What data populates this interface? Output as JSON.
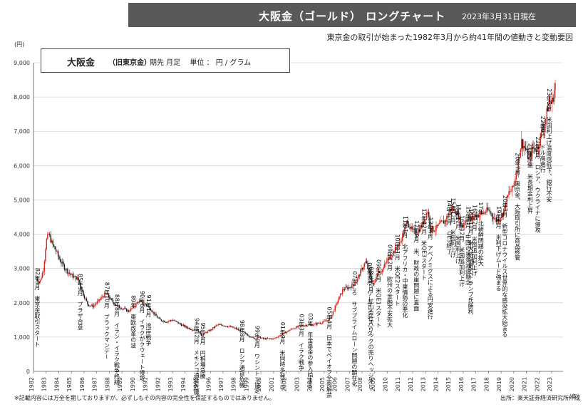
{
  "header": {
    "title": "大阪金（ゴールド） ロングチャート",
    "date": "2023年3月31日現在",
    "subtitle": "東京金の取引が始まった1982年3月から約41年間の値動きと変動要因"
  },
  "infobox": {
    "name": "大阪金",
    "name_sub": "（旧東京金）",
    "meta": "期先 月足　 単位 ： 円 /  グラム"
  },
  "footer": {
    "note": "※記載内容には万全を期しておりますが、必ずしもその内容の完全性を保証するものではありません。",
    "source": "出所：楽天証券経済研究所作成"
  },
  "chart_data": {
    "type": "candlestick",
    "title": "大阪金（ゴールド） ロングチャート",
    "y_unit_label": "(円)",
    "x_unit_label": "（年）",
    "ylim": [
      0,
      9000
    ],
    "xlim": [
      1982,
      2023.9
    ],
    "y_ticks": [
      0,
      1000,
      2000,
      3000,
      4000,
      5000,
      6000,
      7000,
      8000,
      9000
    ],
    "y_tick_labels": [
      "0",
      "1,000",
      "2,000",
      "3,000",
      "4,000",
      "5,000",
      "6,000",
      "7,000",
      "8,000",
      "9,000"
    ],
    "x_ticks": [
      1982,
      1983,
      1984,
      1985,
      1986,
      1987,
      1988,
      1989,
      1990,
      1991,
      1992,
      1993,
      1994,
      1995,
      1996,
      1997,
      1998,
      1999,
      2000,
      2001,
      2002,
      2003,
      2004,
      2005,
      2006,
      2007,
      2008,
      2009,
      2010,
      2011,
      2012,
      2013,
      2014,
      2015,
      2016,
      2017,
      2018,
      2019,
      2020,
      2021,
      2022,
      2023
    ],
    "grid": "horizontal",
    "series_colors": {
      "up": "#e0251b",
      "down": "#1a1a1a"
    },
    "price_path": [
      [
        1982.2,
        2700
      ],
      [
        1982.5,
        2600
      ],
      [
        1982.8,
        3000
      ],
      [
        1983.0,
        3800
      ],
      [
        1983.2,
        4000
      ],
      [
        1983.5,
        3700
      ],
      [
        1983.8,
        3500
      ],
      [
        1984.0,
        3300
      ],
      [
        1984.5,
        3000
      ],
      [
        1985.0,
        2800
      ],
      [
        1985.5,
        2700
      ],
      [
        1986.0,
        2200
      ],
      [
        1986.3,
        1950
      ],
      [
        1986.7,
        1900
      ],
      [
        1987.0,
        2000
      ],
      [
        1987.5,
        2200
      ],
      [
        1987.8,
        2250
      ],
      [
        1988.2,
        2050
      ],
      [
        1988.6,
        1900
      ],
      [
        1989.0,
        1850
      ],
      [
        1989.5,
        1750
      ],
      [
        1990.0,
        1900
      ],
      [
        1990.3,
        2050
      ],
      [
        1990.6,
        2000
      ],
      [
        1990.9,
        1950
      ],
      [
        1991.2,
        1850
      ],
      [
        1991.6,
        1650
      ],
      [
        1992.0,
        1500
      ],
      [
        1992.5,
        1450
      ],
      [
        1993.0,
        1500
      ],
      [
        1993.5,
        1400
      ],
      [
        1994.0,
        1300
      ],
      [
        1994.5,
        1230
      ],
      [
        1995.0,
        1200
      ],
      [
        1995.3,
        1050
      ],
      [
        1995.7,
        1150
      ],
      [
        1996.0,
        1200
      ],
      [
        1996.5,
        1350
      ],
      [
        1997.0,
        1350
      ],
      [
        1997.5,
        1300
      ],
      [
        1998.0,
        1250
      ],
      [
        1998.5,
        1150
      ],
      [
        1999.0,
        1050
      ],
      [
        1999.5,
        950
      ],
      [
        1999.8,
        1000
      ],
      [
        2000.2,
        950
      ],
      [
        2000.6,
        950
      ],
      [
        2001.0,
        950
      ],
      [
        2001.5,
        1050
      ],
      [
        2002.0,
        1150
      ],
      [
        2002.5,
        1250
      ],
      [
        2003.0,
        1300
      ],
      [
        2003.5,
        1350
      ],
      [
        2004.0,
        1350
      ],
      [
        2004.5,
        1400
      ],
      [
        2005.0,
        1450
      ],
      [
        2005.5,
        1550
      ],
      [
        2006.0,
        2000
      ],
      [
        2006.5,
        2400
      ],
      [
        2007.0,
        2450
      ],
      [
        2007.5,
        2600
      ],
      [
        2008.0,
        3000
      ],
      [
        2008.3,
        3200
      ],
      [
        2008.7,
        2700
      ],
      [
        2008.9,
        2500
      ],
      [
        2009.2,
        2900
      ],
      [
        2009.6,
        2950
      ],
      [
        2010.0,
        3250
      ],
      [
        2010.5,
        3500
      ],
      [
        2011.0,
        3750
      ],
      [
        2011.6,
        4400
      ],
      [
        2011.9,
        4100
      ],
      [
        2012.3,
        4050
      ],
      [
        2012.8,
        4300
      ],
      [
        2013.2,
        4700
      ],
      [
        2013.4,
        4150
      ],
      [
        2013.8,
        4150
      ],
      [
        2014.2,
        4300
      ],
      [
        2014.6,
        4400
      ],
      [
        2015.0,
        4750
      ],
      [
        2015.5,
        4650
      ],
      [
        2015.9,
        4200
      ],
      [
        2016.3,
        4500
      ],
      [
        2016.6,
        4400
      ],
      [
        2017.0,
        4550
      ],
      [
        2017.5,
        4600
      ],
      [
        2018.0,
        4700
      ],
      [
        2018.6,
        4400
      ],
      [
        2018.9,
        4500
      ],
      [
        2019.2,
        4650
      ],
      [
        2019.6,
        5200
      ],
      [
        2019.9,
        5300
      ],
      [
        2020.2,
        5800
      ],
      [
        2020.6,
        6700
      ],
      [
        2020.9,
        6500
      ],
      [
        2021.2,
        6200
      ],
      [
        2021.5,
        6500
      ],
      [
        2021.9,
        6500
      ],
      [
        2022.2,
        7000
      ],
      [
        2022.5,
        7300
      ],
      [
        2022.8,
        7900
      ],
      [
        2023.0,
        7800
      ],
      [
        2023.3,
        8400
      ]
    ],
    "annotations": [
      {
        "x": 1982.3,
        "text": "82年3月　東京金取引スタート"
      },
      {
        "x": 1985.7,
        "text": "85年9月　プラザ合意"
      },
      {
        "x": 1987.8,
        "text": "87年10月　ブラックマンデー"
      },
      {
        "x": 1988.6,
        "text": "88年8月　イラン・イラク戦争終結"
      },
      {
        "x": 1989.9,
        "text": "89年　東欧改革の波"
      },
      {
        "x": 1990.6,
        "text": "90年8月　イラクがクウェート侵攻"
      },
      {
        "x": 1991.1,
        "text": "91年1月　湾岸戦争"
      },
      {
        "x": 1994.9,
        "text": "94年12月　メキシコ通貨危機"
      },
      {
        "x": 1995.4,
        "text": "95年4月　円相場急騰"
      },
      {
        "x": 1998.5,
        "text": "98年8月　ロシア通貨危機"
      },
      {
        "x": 1999.7,
        "text": "99年9月　ワシントン協定"
      },
      {
        "x": 2001.7,
        "text": "01年9月　米同時多発テロ"
      },
      {
        "x": 2003.2,
        "text": "03年3月　イラク戦争"
      },
      {
        "x": 2003.9,
        "text": "03年　年金基金の参入始まる"
      },
      {
        "x": 2005.4,
        "text": "05年4月　日本でペイオフ全面解禁"
      },
      {
        "x": 2007.4,
        "text": "07年ころ　サブプライムローン問題の顕在化"
      },
      {
        "x": 2008.6,
        "text": "08年9月　リーマンショック"
      },
      {
        "x": 2008.7,
        "text": "08年12月　鉱山会社バリックの売りヘッジ外し"
      },
      {
        "x": 2009.3,
        "text": "09年3月　米QE1スタート"
      },
      {
        "x": 2010.2,
        "text": "09年12月　欧州の金融不安拡大"
      },
      {
        "x": 2010.8,
        "text": "10年11月　米QE2スタート"
      },
      {
        "x": 2011.4,
        "text": "11年1月　北アフリカ・中東情勢の悪化"
      },
      {
        "x": 2012.3,
        "text": "12年9月　米、財政の崖問題に直面"
      },
      {
        "x": 2012.9,
        "text": "12年12月　米QE3スタート"
      },
      {
        "x": 2013.4,
        "text": "13年4月　アベノミクスによる円安進行"
      },
      {
        "x": 2014.9,
        "text": "14年10月　QE3終了"
      },
      {
        "x": 2015.2,
        "text": "15年12月　米国利上げ"
      },
      {
        "x": 2015.6,
        "text": "15年12月　米国利上げ"
      },
      {
        "x": 2015.9,
        "text": "16年12月　米国追加利上げ"
      },
      {
        "x": 2016.4,
        "text": "15年1月　中国の景気減速懸念"
      },
      {
        "x": 2016.6,
        "text": "16年11月　米大統領選でトランプ氏勝利"
      },
      {
        "x": 2016.9,
        "text": "16年12月　米国追加利上げ"
      },
      {
        "x": 2017.4,
        "text": "17年　北朝鮮問題の拡大"
      },
      {
        "x": 2018.8,
        "text": "19年6月　米利下げムード強まる"
      },
      {
        "x": 2019.3,
        "text": "20年3月　新型コロナウイルス世界的な感染拡大始まる"
      },
      {
        "x": 2020.3,
        "text": "20年7月　東京金、大阪取引所に商品移管"
      },
      {
        "x": 2021.3,
        "text": "21年序盤　米長期金利上昇"
      },
      {
        "x": 2021.9,
        "text": "22年2月　ロシア、ウクライナに侵攻"
      },
      {
        "x": 2022.3,
        "text": "22年9月　ドル高進行"
      },
      {
        "x": 2022.8,
        "text": "23年3月　米国利上げ温度感低下、銀行不安"
      }
    ]
  }
}
